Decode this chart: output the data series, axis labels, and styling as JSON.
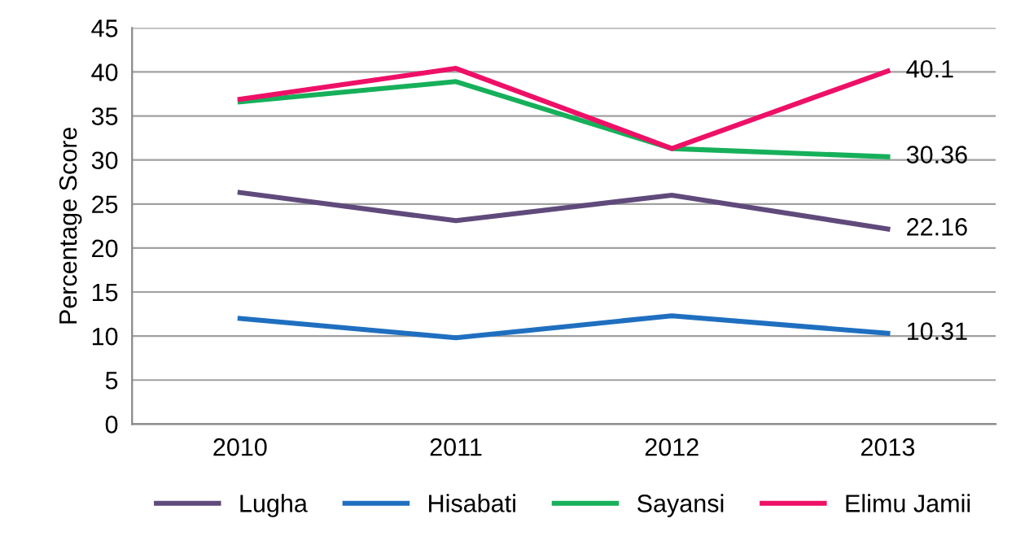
{
  "chart_data": {
    "type": "line",
    "ylabel": "Percentage Score",
    "categories": [
      "2010",
      "2011",
      "2012",
      "2013"
    ],
    "series": [
      {
        "name": "Lugha",
        "color": "#604a7b",
        "values": [
          26.3,
          23.1,
          26.0,
          22.16
        ],
        "value_labels": [
          null,
          null,
          null,
          "22.16"
        ]
      },
      {
        "name": "Hisabati",
        "color": "#1f6fc0",
        "values": [
          12.0,
          9.8,
          12.3,
          10.31
        ],
        "value_labels": [
          null,
          null,
          null,
          "10.31"
        ]
      },
      {
        "name": "Sayansi",
        "color": "#16b05a",
        "values": [
          36.6,
          38.9,
          31.3,
          30.36
        ],
        "value_labels": [
          null,
          null,
          null,
          "30.36"
        ]
      },
      {
        "name": "Elimu Jamii",
        "color": "#ee1067",
        "values": [
          36.9,
          40.4,
          31.3,
          40.1
        ],
        "value_labels": [
          null,
          null,
          null,
          "40.1"
        ]
      }
    ],
    "ylim": [
      0,
      45
    ],
    "yticks": [
      0,
      5,
      10,
      15,
      20,
      25,
      30,
      35,
      40,
      45
    ],
    "grid": "y",
    "legend": "bottom",
    "marker": "none",
    "line_style": "solid"
  }
}
